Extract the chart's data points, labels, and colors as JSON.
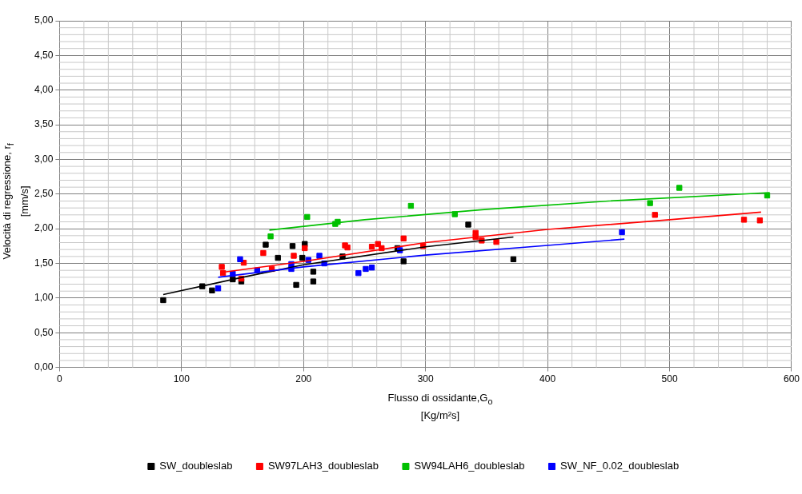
{
  "chart_data": {
    "type": "scatter",
    "xlabel": "Flusso di ossidante,G$_{o}$\n[Kg/m²s]",
    "ylabel": "Velocità di regressione, r$_{f}$\n[mm/s]",
    "xlim": [
      0,
      600
    ],
    "xticks": [
      0,
      100,
      200,
      300,
      400,
      500,
      600
    ],
    "ylim": [
      0,
      5
    ],
    "yticks": [
      {
        "value": 0,
        "label": "0,00"
      },
      {
        "value": 0.5,
        "label": "0,50"
      },
      {
        "value": 1,
        "label": "1,00"
      },
      {
        "value": 1.5,
        "label": "1,50"
      },
      {
        "value": 2,
        "label": "2,00"
      },
      {
        "value": 2.5,
        "label": "2,50"
      },
      {
        "value": 3,
        "label": "3,00"
      },
      {
        "value": 3.5,
        "label": "3,50"
      },
      {
        "value": 4,
        "label": "4,00"
      },
      {
        "value": 4.5,
        "label": "4,50"
      },
      {
        "value": 5,
        "label": "5,00"
      }
    ],
    "grid": true,
    "legend": "bottom",
    "marker": "square",
    "series": [
      {
        "name": "SW_doubleslab",
        "color": "#000000",
        "x": [
          85,
          117,
          125,
          142,
          149,
          169,
          179,
          191,
          194,
          199,
          201,
          208,
          208,
          232,
          277,
          282,
          335,
          372
        ],
        "values": [
          0.97,
          1.17,
          1.11,
          1.27,
          1.24,
          1.77,
          1.58,
          1.75,
          1.19,
          1.58,
          1.78,
          1.38,
          1.24,
          1.6,
          1.72,
          1.53,
          2.06,
          1.56
        ]
      },
      {
        "name": "SW97LAH3_doubleslab",
        "color": "#ff0000",
        "x": [
          133,
          134,
          145,
          149,
          151,
          167,
          174,
          192,
          201,
          234,
          236,
          256,
          261,
          264,
          282,
          298,
          341,
          341,
          346,
          358,
          488,
          561,
          574
        ],
        "values": [
          1.45,
          1.36,
          null,
          1.28,
          1.51,
          1.65,
          1.42,
          1.61,
          1.72,
          1.76,
          1.73,
          1.74,
          1.78,
          1.72,
          1.86,
          1.75,
          1.94,
          1.88,
          1.83,
          1.81,
          2.2,
          2.13,
          2.12
        ]
      },
      {
        "name": "SW94LAH6_doubleslab",
        "color": "#00c000",
        "x": [
          173,
          203,
          226,
          228,
          288,
          324,
          484,
          508,
          580
        ],
        "values": [
          1.89,
          2.17,
          2.07,
          2.1,
          2.33,
          2.21,
          2.37,
          2.59,
          2.48
        ]
      },
      {
        "name": "SW_NF_0.02_doubleslab",
        "color": "#0000ff",
        "x": [
          130,
          141,
          142,
          148,
          162,
          190,
          190,
          204,
          213,
          217,
          245,
          251,
          256,
          279,
          461
        ],
        "values": [
          1.14,
          null,
          1.35,
          1.56,
          1.4,
          1.49,
          1.42,
          1.55,
          1.61,
          1.5,
          1.36,
          1.42,
          1.44,
          1.69,
          1.95
        ]
      },
      {
        "type": "line",
        "color": "#000000",
        "marker": "none",
        "x": [
          85,
          150,
          200,
          300,
          372
        ],
        "values": [
          1.05,
          1.3,
          1.48,
          1.74,
          1.88
        ]
      },
      {
        "type": "line",
        "color": "#ff0000",
        "marker": "none",
        "x": [
          133,
          200,
          300,
          400,
          500,
          575
        ],
        "values": [
          1.37,
          1.53,
          1.8,
          1.99,
          2.13,
          2.24
        ]
      },
      {
        "type": "line",
        "color": "#00c000",
        "marker": "none",
        "x": [
          172,
          250,
          350,
          450,
          582
        ],
        "values": [
          1.98,
          2.13,
          2.28,
          2.4,
          2.52
        ]
      },
      {
        "type": "line",
        "color": "#0000ff",
        "marker": "none",
        "x": [
          130,
          200,
          300,
          400,
          463
        ],
        "values": [
          1.3,
          1.45,
          1.62,
          1.76,
          1.85
        ]
      }
    ]
  }
}
